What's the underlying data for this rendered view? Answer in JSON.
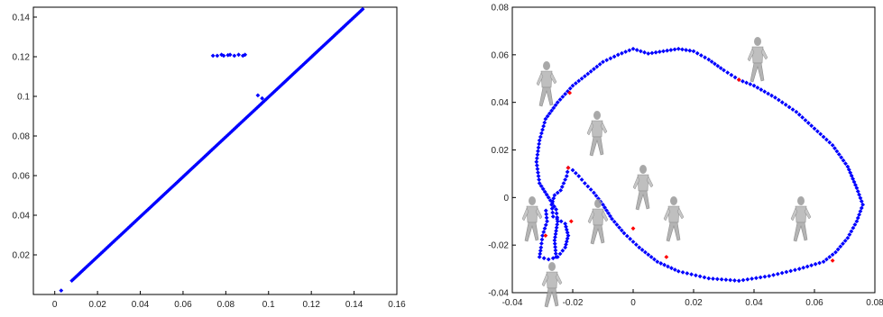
{
  "chart_data": [
    {
      "type": "scatter",
      "xlim": [
        -0.01,
        0.16
      ],
      "ylim": [
        0,
        0.145
      ],
      "xticks": [
        0,
        0.02,
        0.04,
        0.06,
        0.08,
        0.1,
        0.12,
        0.14,
        0.16
      ],
      "xtick_labels": [
        "0",
        "0.02",
        "0.04",
        "0.06",
        "0.08",
        "0.1",
        "0.12",
        "0.14",
        "0.16"
      ],
      "yticks": [
        0.02,
        0.04,
        0.06,
        0.08,
        0.1,
        0.12,
        0.14
      ],
      "ytick_labels": [
        "0.02",
        "0.04",
        "0.06",
        "0.08",
        "0.1",
        "0.12",
        "0.14"
      ],
      "grid": false,
      "color": "#0000ff",
      "diagonal_points": {
        "from": [
          0.008,
          0.007
        ],
        "to": [
          0.144,
          0.144
        ]
      },
      "cluster_points": [
        [
          0.074,
          0.1205
        ],
        [
          0.076,
          0.1205
        ],
        [
          0.078,
          0.121
        ],
        [
          0.079,
          0.1205
        ],
        [
          0.081,
          0.1208
        ],
        [
          0.082,
          0.121
        ],
        [
          0.084,
          0.1205
        ],
        [
          0.086,
          0.121
        ],
        [
          0.088,
          0.1205
        ],
        [
          0.089,
          0.121
        ]
      ],
      "extra_points": [
        [
          0.095,
          0.1005
        ],
        [
          0.097,
          0.099
        ],
        [
          0.003,
          0.002
        ]
      ]
    },
    {
      "type": "scatter",
      "xlim": [
        -0.04,
        0.08
      ],
      "ylim": [
        -0.04,
        0.08
      ],
      "xticks": [
        -0.04,
        -0.02,
        0,
        0.02,
        0.04,
        0.06,
        0.08
      ],
      "xtick_labels": [
        "-0.04",
        "-0.02",
        "0",
        "0.02",
        "0.04",
        "0.06",
        "0.08"
      ],
      "yticks": [
        -0.04,
        -0.02,
        0,
        0.02,
        0.04,
        0.06,
        0.08
      ],
      "ytick_labels": [
        "-0.04",
        "-0.02",
        "0",
        "0.02",
        "0.04",
        "0.06",
        "0.08"
      ],
      "grid": false,
      "color": "#0000ff",
      "highlight_color": "#ff0000",
      "trajectory_waypoints": [
        [
          -0.0255,
          -0.025
        ],
        [
          -0.026,
          -0.018
        ],
        [
          -0.025,
          -0.01
        ],
        [
          -0.0255,
          -0.005
        ],
        [
          -0.028,
          0.0
        ],
        [
          -0.031,
          0.006
        ],
        [
          -0.032,
          0.015
        ],
        [
          -0.031,
          0.024
        ],
        [
          -0.029,
          0.033
        ],
        [
          -0.025,
          0.04
        ],
        [
          -0.02,
          0.047
        ],
        [
          -0.015,
          0.052
        ],
        [
          -0.01,
          0.057
        ],
        [
          -0.005,
          0.06
        ],
        [
          0.0,
          0.0625
        ],
        [
          0.005,
          0.0605
        ],
        [
          0.01,
          0.0615
        ],
        [
          0.015,
          0.0625
        ],
        [
          0.02,
          0.0615
        ],
        [
          0.025,
          0.058
        ],
        [
          0.03,
          0.0535
        ],
        [
          0.035,
          0.0495
        ],
        [
          0.04,
          0.047
        ],
        [
          0.047,
          0.042
        ],
        [
          0.054,
          0.036
        ],
        [
          0.06,
          0.029
        ],
        [
          0.066,
          0.022
        ],
        [
          0.071,
          0.013
        ],
        [
          0.074,
          0.004
        ],
        [
          0.076,
          -0.003
        ],
        [
          0.074,
          -0.01
        ],
        [
          0.071,
          -0.017
        ],
        [
          0.067,
          -0.023
        ],
        [
          0.063,
          -0.027
        ],
        [
          0.055,
          -0.03
        ],
        [
          0.045,
          -0.033
        ],
        [
          0.035,
          -0.035
        ],
        [
          0.025,
          -0.034
        ],
        [
          0.015,
          -0.031
        ],
        [
          0.008,
          -0.027
        ],
        [
          0.002,
          -0.021
        ],
        [
          -0.003,
          -0.015
        ],
        [
          -0.007,
          -0.009
        ],
        [
          -0.01,
          -0.003
        ],
        [
          -0.013,
          0.002
        ],
        [
          -0.016,
          0.006
        ],
        [
          -0.018,
          0.009
        ],
        [
          -0.02,
          0.0115
        ],
        [
          -0.0215,
          0.0125
        ],
        [
          -0.022,
          0.009
        ],
        [
          -0.023,
          0.006
        ],
        [
          -0.024,
          0.003
        ],
        [
          -0.026,
          0.001
        ],
        [
          -0.027,
          -0.003
        ],
        [
          -0.0265,
          -0.008
        ],
        [
          -0.0225,
          -0.011
        ],
        [
          -0.0215,
          -0.016
        ],
        [
          -0.0225,
          -0.021
        ],
        [
          -0.025,
          -0.025
        ],
        [
          -0.028,
          -0.026
        ],
        [
          -0.031,
          -0.025
        ],
        [
          -0.0305,
          -0.021
        ],
        [
          -0.03,
          -0.016
        ],
        [
          -0.0285,
          -0.01
        ],
        [
          -0.029,
          -0.004
        ]
      ],
      "highlight_points": [
        [
          -0.021,
          0.044
        ],
        [
          0.035,
          0.0495
        ],
        [
          -0.0215,
          0.0125
        ],
        [
          -0.0205,
          -0.01
        ],
        [
          -0.029,
          -0.016
        ],
        [
          0.0,
          -0.013
        ],
        [
          0.011,
          -0.025
        ],
        [
          0.066,
          -0.0265
        ]
      ]
    }
  ]
}
